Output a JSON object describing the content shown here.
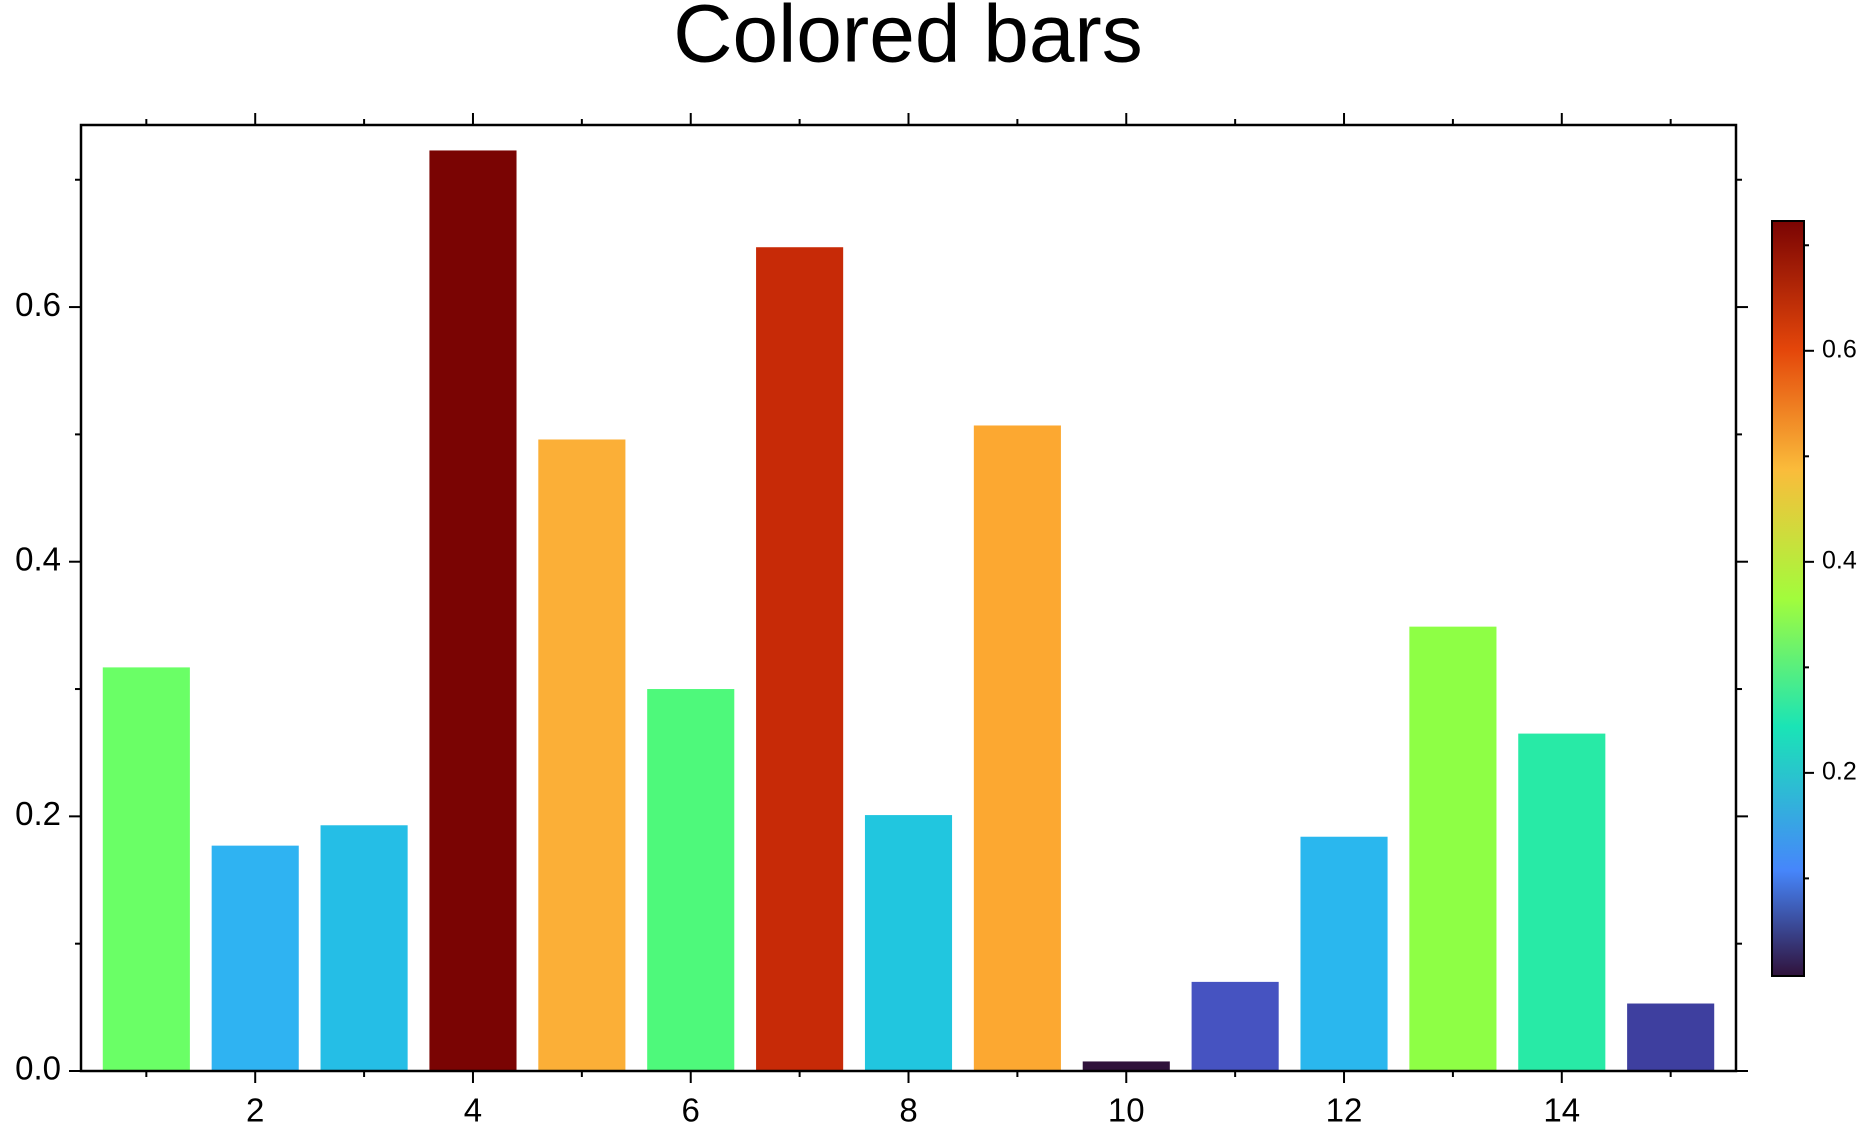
{
  "chart_data": {
    "type": "bar",
    "title": "Colored bars",
    "x": [
      1,
      2,
      3,
      4,
      5,
      6,
      7,
      8,
      9,
      10,
      11,
      12,
      13,
      14,
      15
    ],
    "values": [
      0.317,
      0.177,
      0.193,
      0.723,
      0.496,
      0.3,
      0.647,
      0.201,
      0.507,
      0.0075,
      0.07,
      0.184,
      0.349,
      0.265,
      0.053
    ],
    "colors": [
      "#6aff66",
      "#2fb3f2",
      "#25bee6",
      "#7a0403",
      "#fbaf37",
      "#4ef97b",
      "#c72a07",
      "#21c6df",
      "#fca831",
      "#30123b",
      "#4653c1",
      "#2ab7ee",
      "#8eff45",
      "#28eaa6",
      "#3e3f9f"
    ],
    "xlim": [
      0.4,
      15.6
    ],
    "xticks": [
      2,
      4,
      6,
      8,
      10,
      12,
      14
    ],
    "xminorticks": [
      1,
      3,
      5,
      7,
      9,
      11,
      13,
      15
    ],
    "ylim": [
      0,
      0.743
    ],
    "yticks": [
      {
        "value": 0,
        "label": "0.0"
      },
      0.2,
      0.4,
      0.6
    ],
    "yminorticks": [
      0.1,
      0.3,
      0.5,
      0.7
    ],
    "colorbar": {
      "colormap": "turbo",
      "lim": [
        0.0075,
        0.723
      ],
      "ticks": [
        0.2,
        0.4,
        0.6
      ],
      "minorticks": [
        0.1,
        0.3,
        0.5,
        0.7
      ]
    }
  }
}
